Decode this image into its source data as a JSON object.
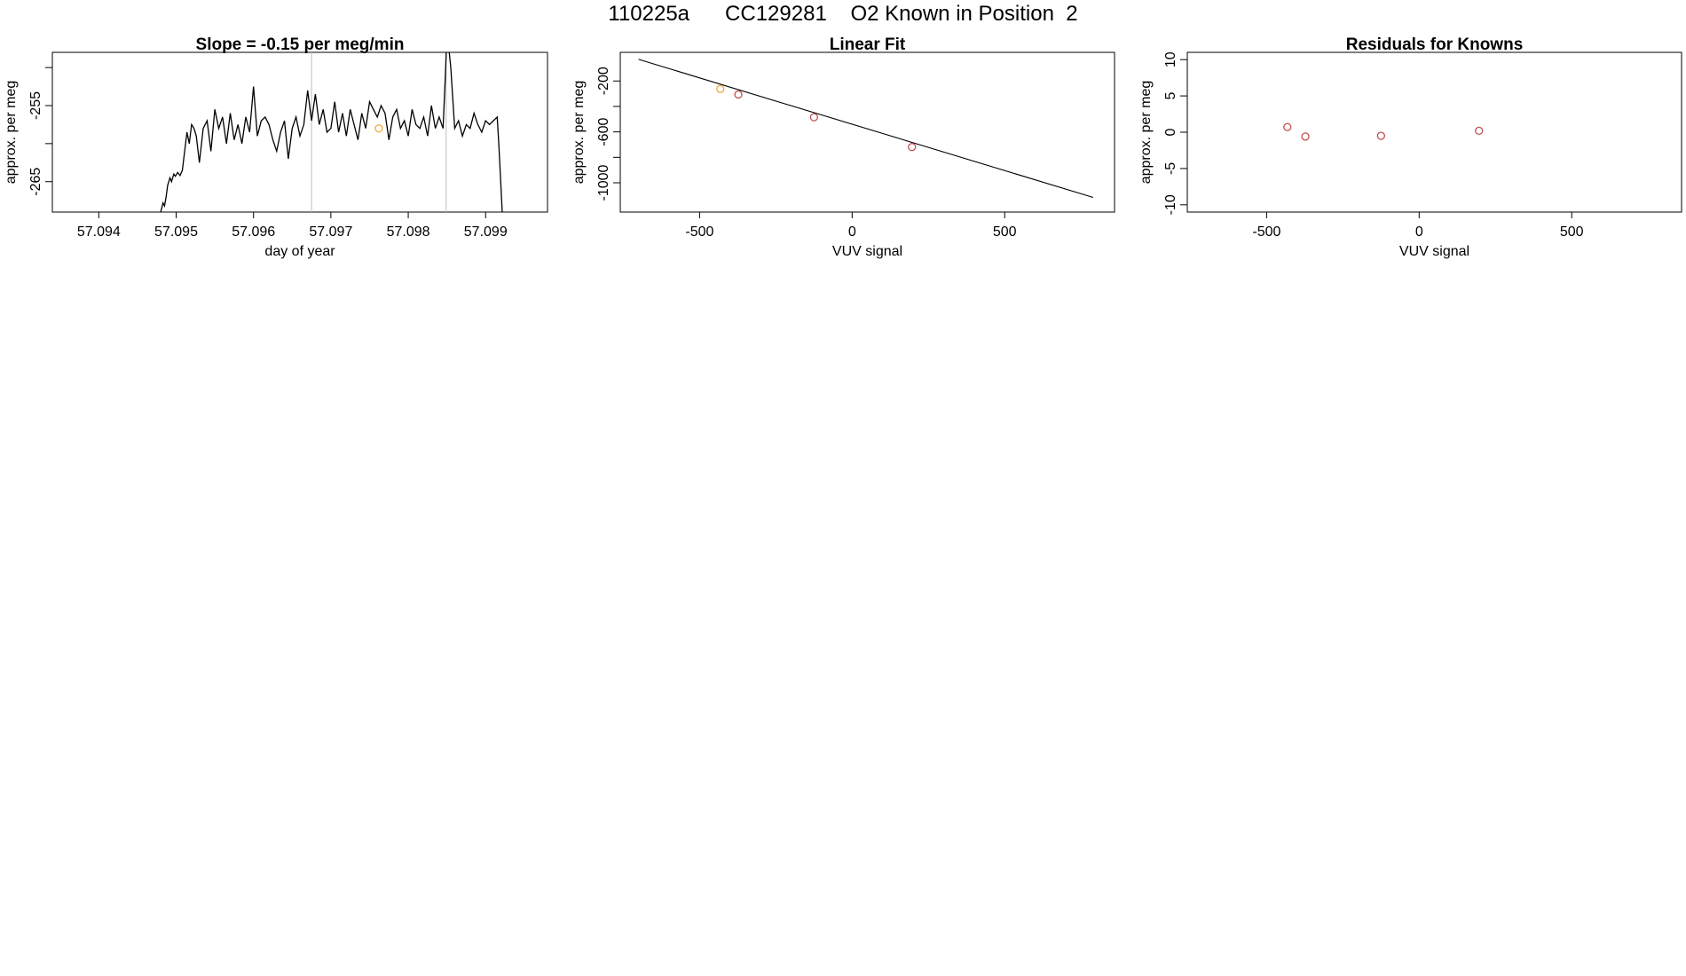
{
  "header": {
    "title": "110225a      CC129281    O2 Known in Position  2"
  },
  "chart_data": [
    {
      "type": "line",
      "title": "Slope =  -0.15  per meg/min",
      "xlabel": "day of year",
      "ylabel": "approx. per meg",
      "xlim": [
        57.0934,
        57.0998
      ],
      "ylim": [
        -269,
        -248
      ],
      "x_ticks": [
        "57.094",
        "57.095",
        "57.096",
        "57.097",
        "57.098",
        "57.099"
      ],
      "y_ticks": [
        "-265",
        "-255"
      ],
      "y_ticks_unlabeled": [
        -260,
        -250
      ],
      "vertical_lines": [
        57.09675,
        57.09849
      ],
      "series": [
        {
          "color": "#000000",
          "x": [
            57.0948,
            57.09483,
            57.09485,
            57.09487,
            57.09489,
            57.09492,
            57.09494,
            57.09497,
            57.09499,
            57.09502,
            57.09505,
            57.09508,
            57.09511,
            57.09514,
            57.09517,
            57.0952,
            57.09523,
            57.09526,
            57.0953,
            57.09535,
            57.0954,
            57.09545,
            57.0955,
            57.09555,
            57.0956,
            57.09565,
            57.0957,
            57.09575,
            57.0958,
            57.09585,
            57.0959,
            57.09595,
            57.096,
            57.09605,
            57.0961,
            57.09615,
            57.0962,
            57.09625,
            57.0963,
            57.09635,
            57.0964,
            57.09645,
            57.0965,
            57.09655,
            57.0966,
            57.09665,
            57.0967,
            57.09675,
            57.0968,
            57.09685,
            57.0969,
            57.09695,
            57.097,
            57.09705,
            57.0971,
            57.09715,
            57.0972,
            57.09725,
            57.0973,
            57.09735,
            57.0974,
            57.09745,
            57.0975,
            57.09755,
            57.0976,
            57.09765,
            57.0977,
            57.09775,
            57.0978,
            57.09785,
            57.0979,
            57.09795,
            57.098,
            57.09805,
            57.0981,
            57.09815,
            57.0982,
            57.09825,
            57.0983,
            57.09835,
            57.0984,
            57.09845,
            57.09848,
            57.0985,
            57.09852,
            57.09855,
            57.0986,
            57.09865,
            57.0987,
            57.09875,
            57.0988,
            57.09885,
            57.0989,
            57.09895,
            57.099,
            57.09905,
            57.0991,
            57.09915,
            57.09917,
            57.0992,
            57.09922
          ],
          "y": [
            -269,
            -267.8,
            -268.2,
            -267,
            -265.5,
            -264.5,
            -265,
            -264,
            -264.3,
            -263.8,
            -264.2,
            -263.5,
            -261,
            -258.5,
            -260,
            -257.5,
            -258,
            -259,
            -262.5,
            -258,
            -257,
            -261,
            -255.5,
            -258,
            -256.5,
            -260,
            -256,
            -259.5,
            -257.5,
            -260,
            -256.5,
            -258.5,
            -252.5,
            -259,
            -257,
            -256.5,
            -257.5,
            -259.5,
            -261,
            -258.5,
            -257,
            -262,
            -258,
            -256.5,
            -259,
            -257.5,
            -253,
            -257,
            -253.5,
            -257.5,
            -255.5,
            -258.5,
            -258,
            -254.5,
            -258.5,
            -256,
            -259,
            -255.5,
            -257.5,
            -259.5,
            -256,
            -258,
            -254.5,
            -255.5,
            -256.5,
            -255,
            -256,
            -259.5,
            -256.5,
            -255.5,
            -258,
            -257,
            -259,
            -255.5,
            -257.5,
            -258,
            -256.5,
            -259,
            -255,
            -258,
            -256.5,
            -258,
            -251,
            -245.5,
            -247,
            -250,
            -258,
            -257,
            -259,
            -257.5,
            -258,
            -256,
            -257.5,
            -258.5,
            -257,
            -257.5,
            -257,
            -256.5,
            -260,
            -266,
            -270
          ]
        }
      ],
      "points": [
        {
          "x": 57.09762,
          "y": -258,
          "color": "#f4a83a"
        }
      ]
    },
    {
      "type": "scatter",
      "title": "Linear Fit",
      "xlabel": "VUV signal",
      "ylabel": "approx. per meg",
      "xlim": [
        -760,
        860
      ],
      "ylim": [
        -1230,
        25
      ],
      "x_ticks": [
        "-500",
        "0",
        "500"
      ],
      "y_ticks": [
        "-200",
        "-600",
        "-1000"
      ],
      "y_ticks_unlabeled": [
        -400,
        -800
      ],
      "fit_line": {
        "x": [
          -700,
          790
        ],
        "y": [
          -30,
          -1115
        ]
      },
      "points": [
        {
          "x": -432,
          "y": -263,
          "color": "#f4a83a"
        },
        {
          "x": -373,
          "y": -306,
          "color": "#c0504d"
        },
        {
          "x": -125,
          "y": -485,
          "color": "#c0504d"
        },
        {
          "x": 196,
          "y": -719,
          "color": "#c0504d"
        }
      ]
    },
    {
      "type": "scatter",
      "title": "Residuals for Knowns",
      "xlabel": "VUV signal",
      "ylabel": "approx. per meg",
      "xlim": [
        -760,
        860
      ],
      "ylim": [
        -11,
        11
      ],
      "x_ticks": [
        "-500",
        "0",
        "500"
      ],
      "y_ticks": [
        "10",
        "5",
        "0",
        "-5",
        "-10"
      ],
      "points": [
        {
          "x": -432,
          "y": 0.7,
          "color": "#c0504d"
        },
        {
          "x": -373,
          "y": -0.6,
          "color": "#c0504d"
        },
        {
          "x": -125,
          "y": -0.5,
          "color": "#c0504d"
        },
        {
          "x": 196,
          "y": 0.2,
          "color": "#c0504d"
        }
      ]
    }
  ]
}
